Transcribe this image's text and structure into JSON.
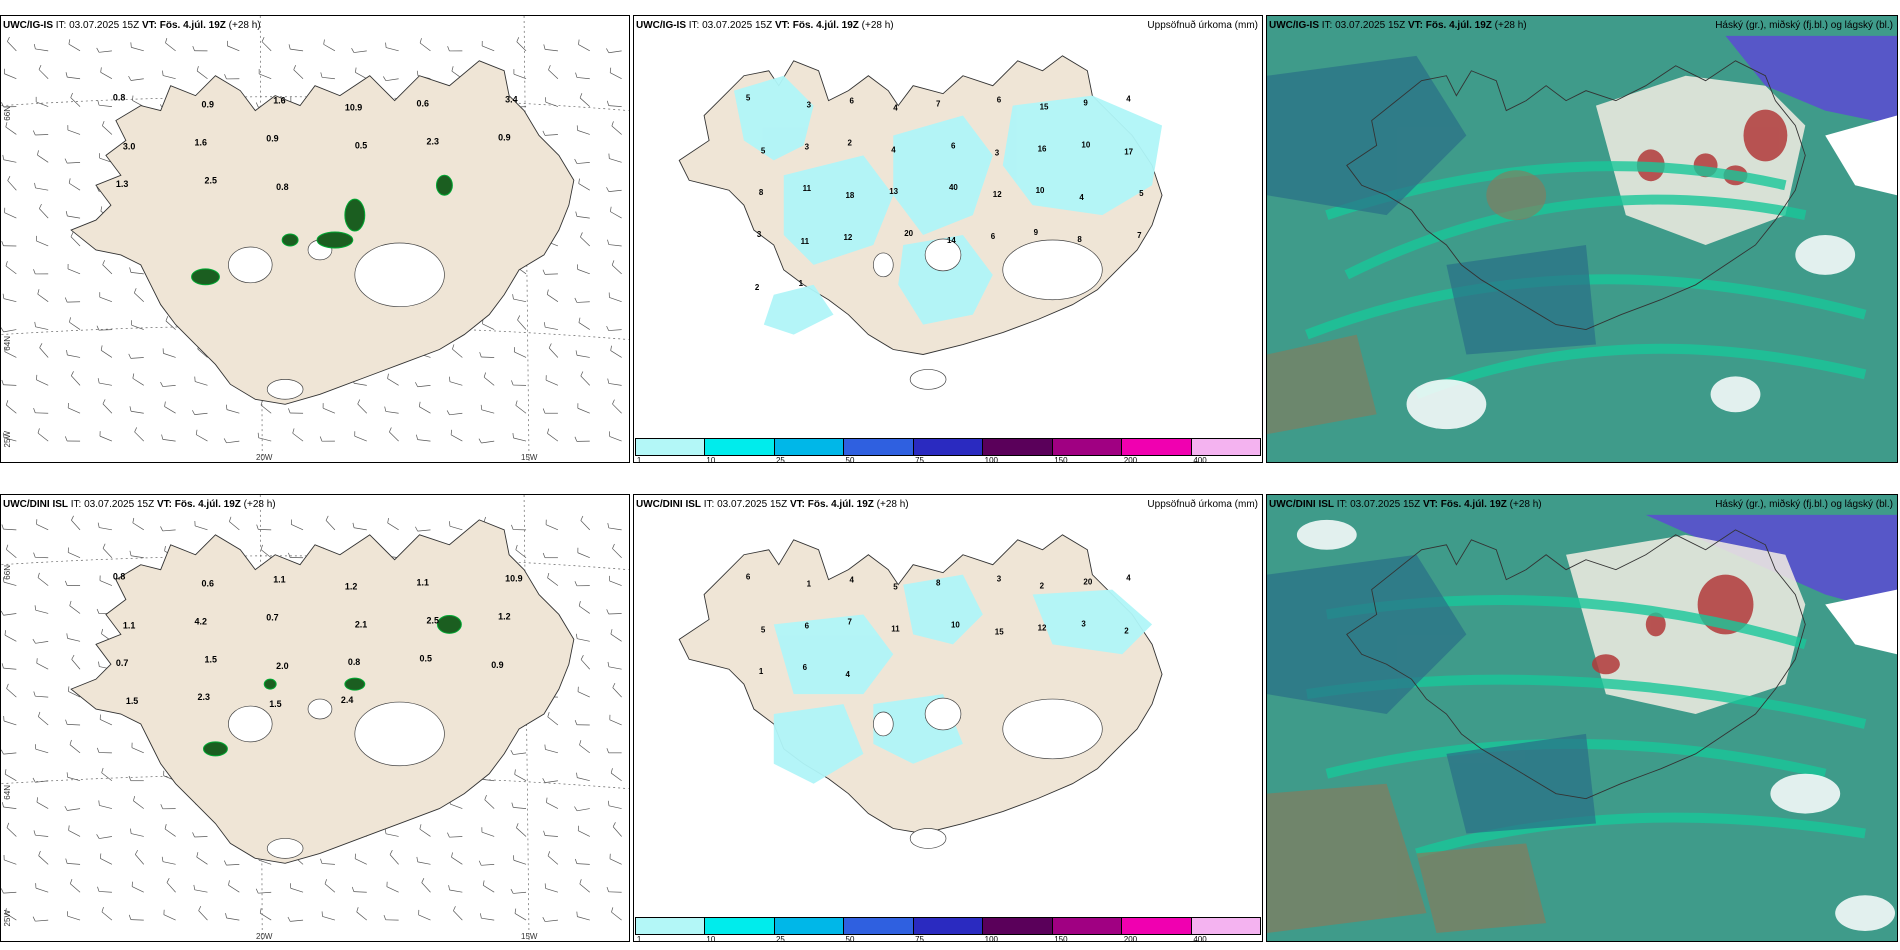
{
  "rows": [
    {
      "model": "UWC/IG-IS",
      "it_label": "IT:",
      "it_value": "03.07.2025 15Z",
      "vt_label": "VT:",
      "vt_value": "Fös. 4.júl. 19Z",
      "lead": "(+28 h)",
      "wind_labels": [
        "0.8",
        "0.9",
        "1.6",
        "10.9",
        "0.6",
        "3.4",
        "3.0",
        "1.6",
        "0.9",
        "0.5",
        "2.3",
        "0.9",
        "1.3",
        "2.5",
        "0.8"
      ],
      "precip_labels": [
        "5",
        "3",
        "6",
        "4",
        "7",
        "6",
        "15",
        "9",
        "4",
        "5",
        "3",
        "2",
        "4",
        "6",
        "3",
        "16",
        "10",
        "17",
        "8",
        "11",
        "18",
        "13",
        "40",
        "12",
        "10",
        "4",
        "5",
        "3",
        "11",
        "12",
        "20",
        "14",
        "6",
        "9",
        "8",
        "7",
        "2",
        "1"
      ],
      "lat_top": "66N",
      "lat_mid": "64N",
      "lon_a": "25W",
      "lon_b": "20W",
      "lon_c": "15W"
    },
    {
      "model": "UWC/DINI ISL",
      "it_label": "IT:",
      "it_value": "03.07.2025 15Z",
      "vt_label": "VT:",
      "vt_value": "Fös. 4.júl. 19Z",
      "lead": "(+28 h)",
      "wind_labels": [
        "0.8",
        "0.6",
        "1.1",
        "1.2",
        "1.1",
        "10.9",
        "1.1",
        "4.2",
        "0.7",
        "2.1",
        "2.5",
        "1.2",
        "0.7",
        "1.5",
        "2.0",
        "0.8",
        "0.5",
        "0.9",
        "1.5",
        "2.3",
        "1.5",
        "2.4"
      ],
      "precip_labels": [
        "6",
        "1",
        "4",
        "5",
        "8",
        "3",
        "2",
        "20",
        "4",
        "5",
        "6",
        "7",
        "11",
        "10",
        "15",
        "12",
        "3",
        "2",
        "1",
        "6",
        "4"
      ],
      "lat_top": "66N",
      "lat_mid": "64N",
      "lon_a": "25W",
      "lon_b": "20W",
      "lon_c": "15W"
    }
  ],
  "precip_title": "Uppsöfnuð úrkoma (mm)",
  "cloud_title": "Háský (gr.), miðský (fj.bl.) og lágský (bl.)",
  "colorbar": {
    "ticks": [
      "1",
      "10",
      "25",
      "50",
      "75",
      "100",
      "150",
      "200",
      "400"
    ],
    "colors": [
      "#b3f7f7",
      "#00ecec",
      "#00b7e8",
      "#2f60e0",
      "#2a2ac0",
      "#5a005a",
      "#a00082",
      "#f000b0",
      "#f4b3f0"
    ]
  },
  "colors": {
    "land": "#efe5d6",
    "precip": "#b0f5f8",
    "sea_cloud": "#3f9b8a",
    "high_cloud": "#5757c8",
    "mid_cloud": "#b23a3a",
    "low_cloud": "#19c79a"
  }
}
